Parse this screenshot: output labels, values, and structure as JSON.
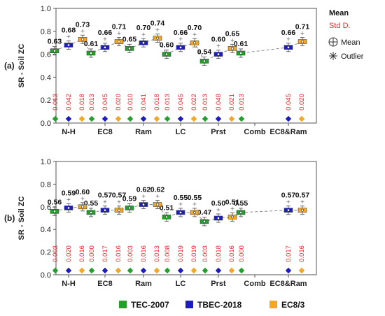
{
  "chart_data": [
    {
      "type": "box",
      "panel_label": "(a)",
      "ylabel": "SR - Soil ZC",
      "ylim": [
        0,
        1.0
      ],
      "yticks": [
        "0.0",
        "0.2",
        "0.4",
        "0.6",
        "0.8",
        "1.0"
      ],
      "categories": [
        "N-H",
        "EC8",
        "Ram",
        "LC",
        "Prst",
        "Comb",
        "EC8&Ram"
      ],
      "series": [
        {
          "name": "TEC-2007",
          "color": "#1fa12a",
          "mean": [
            0.63,
            0.61,
            0.65,
            0.6,
            0.54,
            0.61,
            null
          ],
          "sd": [
            "0.013",
            "0.013",
            "0.010",
            "0.013",
            "0.013",
            "0.013",
            null
          ],
          "mean_labels": [
            "0.63",
            "0.61",
            "0.65",
            "0.60",
            "0.54",
            "0.61",
            ""
          ]
        },
        {
          "name": "TBEC-2018",
          "color": "#1c1cc4",
          "mean": [
            0.68,
            0.66,
            0.7,
            0.66,
            0.6,
            null,
            0.66
          ],
          "sd": [
            "0.042",
            "0.045",
            "0.041",
            "0.045",
            "0.048",
            null,
            "0.045"
          ],
          "mean_labels": [
            "0.68",
            "0.66",
            "0.70",
            "0.66",
            "0.60",
            "",
            "0.66"
          ]
        },
        {
          "name": "EC8/3",
          "color": "#f5a623",
          "mean": [
            0.73,
            0.71,
            0.74,
            0.7,
            0.65,
            null,
            0.71
          ],
          "sd": [
            "0.018",
            "0.020",
            "0.018",
            "0.022",
            "0.021",
            null,
            "0.020"
          ],
          "mean_labels": [
            "0.73",
            "0.71",
            "0.74",
            "0.70",
            "0.65",
            "",
            "0.71"
          ]
        }
      ]
    },
    {
      "type": "box",
      "panel_label": "(b)",
      "ylabel": "SR - Soil ZC",
      "ylim": [
        0,
        1.0
      ],
      "yticks": [
        "0.0",
        "0.2",
        "0.4",
        "0.6",
        "0.8",
        "1.0"
      ],
      "categories": [
        "N-H",
        "EC8",
        "Ram",
        "LC",
        "Prst",
        "Comb",
        "EC8&Ram"
      ],
      "series": [
        {
          "name": "TEC-2007",
          "color": "#1fa12a",
          "mean": [
            0.56,
            0.55,
            0.59,
            0.51,
            0.47,
            0.55,
            null
          ],
          "sd": [
            "0.003",
            "0.000",
            "0.003",
            "0.008",
            "0.003",
            "0.000",
            null
          ],
          "mean_labels": [
            "0.56",
            "0.55",
            "0.59",
            "0.51",
            "0.47",
            "0.55",
            ""
          ]
        },
        {
          "name": "TBEC-2018",
          "color": "#1c1cc4",
          "mean": [
            0.59,
            0.57,
            0.62,
            0.55,
            0.5,
            null,
            0.57
          ],
          "sd": [
            "0.020",
            "0.017",
            "0.016",
            "0.019",
            "0.018",
            null,
            "0.017"
          ],
          "mean_labels": [
            "0.59",
            "0.57",
            "0.62",
            "0.55",
            "0.50",
            "",
            "0.57"
          ]
        },
        {
          "name": "EC8/3",
          "color": "#f5a623",
          "mean": [
            0.6,
            0.57,
            0.62,
            0.55,
            0.51,
            null,
            0.57
          ],
          "sd": [
            "0.016",
            "0.016",
            "0.013",
            "0.019",
            "0.016",
            null,
            "0.016"
          ],
          "mean_labels": [
            "0.60",
            "0.57",
            "0.62",
            "0.55",
            "0.51",
            "",
            "0.57"
          ]
        }
      ]
    }
  ],
  "side_legend": {
    "mean_title": "Mean",
    "sd_title": "Std D.",
    "items": [
      {
        "label": "Mean",
        "icon": "circle-plus-icon"
      },
      {
        "label": "Outlier",
        "icon": "asterisk-icon"
      }
    ]
  },
  "bottom_legend": [
    {
      "label": "TEC-2007",
      "color": "#1fa12a"
    },
    {
      "label": "TBEC-2018",
      "color": "#1c1cc4"
    },
    {
      "label": "EC8/3",
      "color": "#f5a623"
    }
  ]
}
